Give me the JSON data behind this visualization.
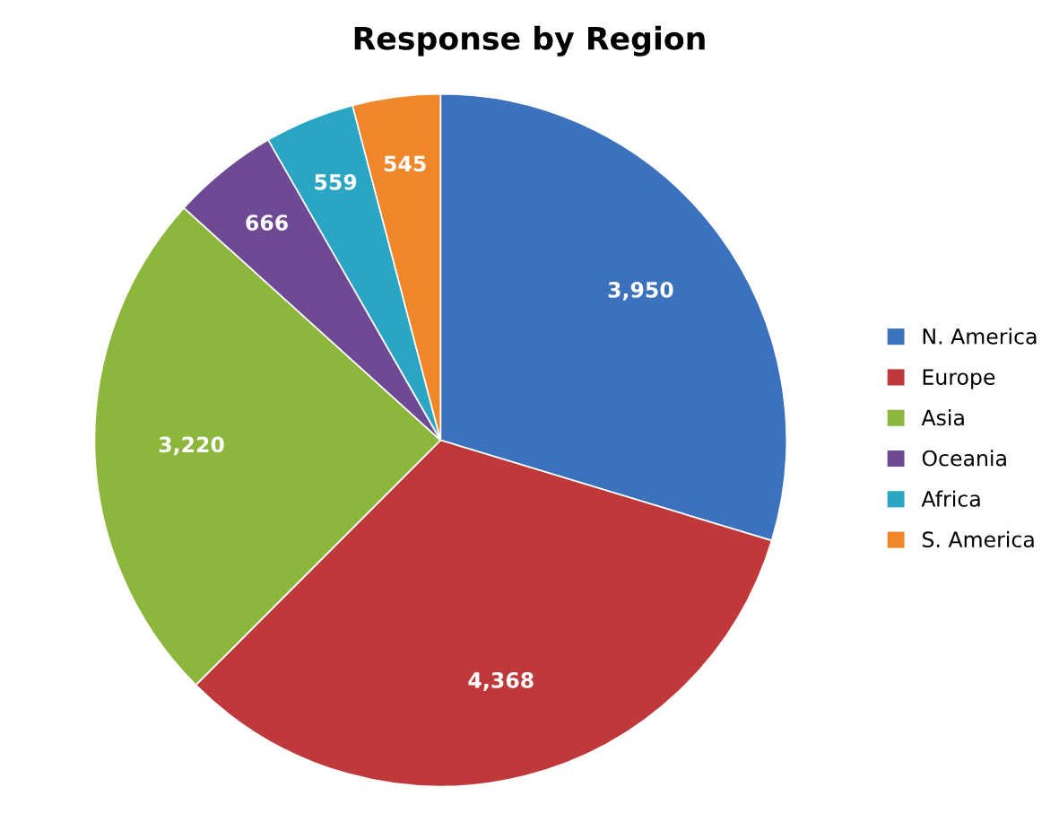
{
  "chart_data": {
    "type": "pie",
    "title": "Response by Region",
    "categories": [
      "N. America",
      "Europe",
      "Asia",
      "Oceania",
      "Africa",
      "S. America"
    ],
    "values": [
      3950,
      4368,
      3220,
      666,
      559,
      545
    ],
    "colors": [
      "#3c72bd",
      "#c0393a",
      "#8db63c",
      "#6f4a94",
      "#2aa5c3",
      "#f0862a"
    ],
    "value_labels": [
      "3,950",
      "4,368",
      "3,220",
      "666",
      "559",
      "545"
    ],
    "legend": "right"
  }
}
